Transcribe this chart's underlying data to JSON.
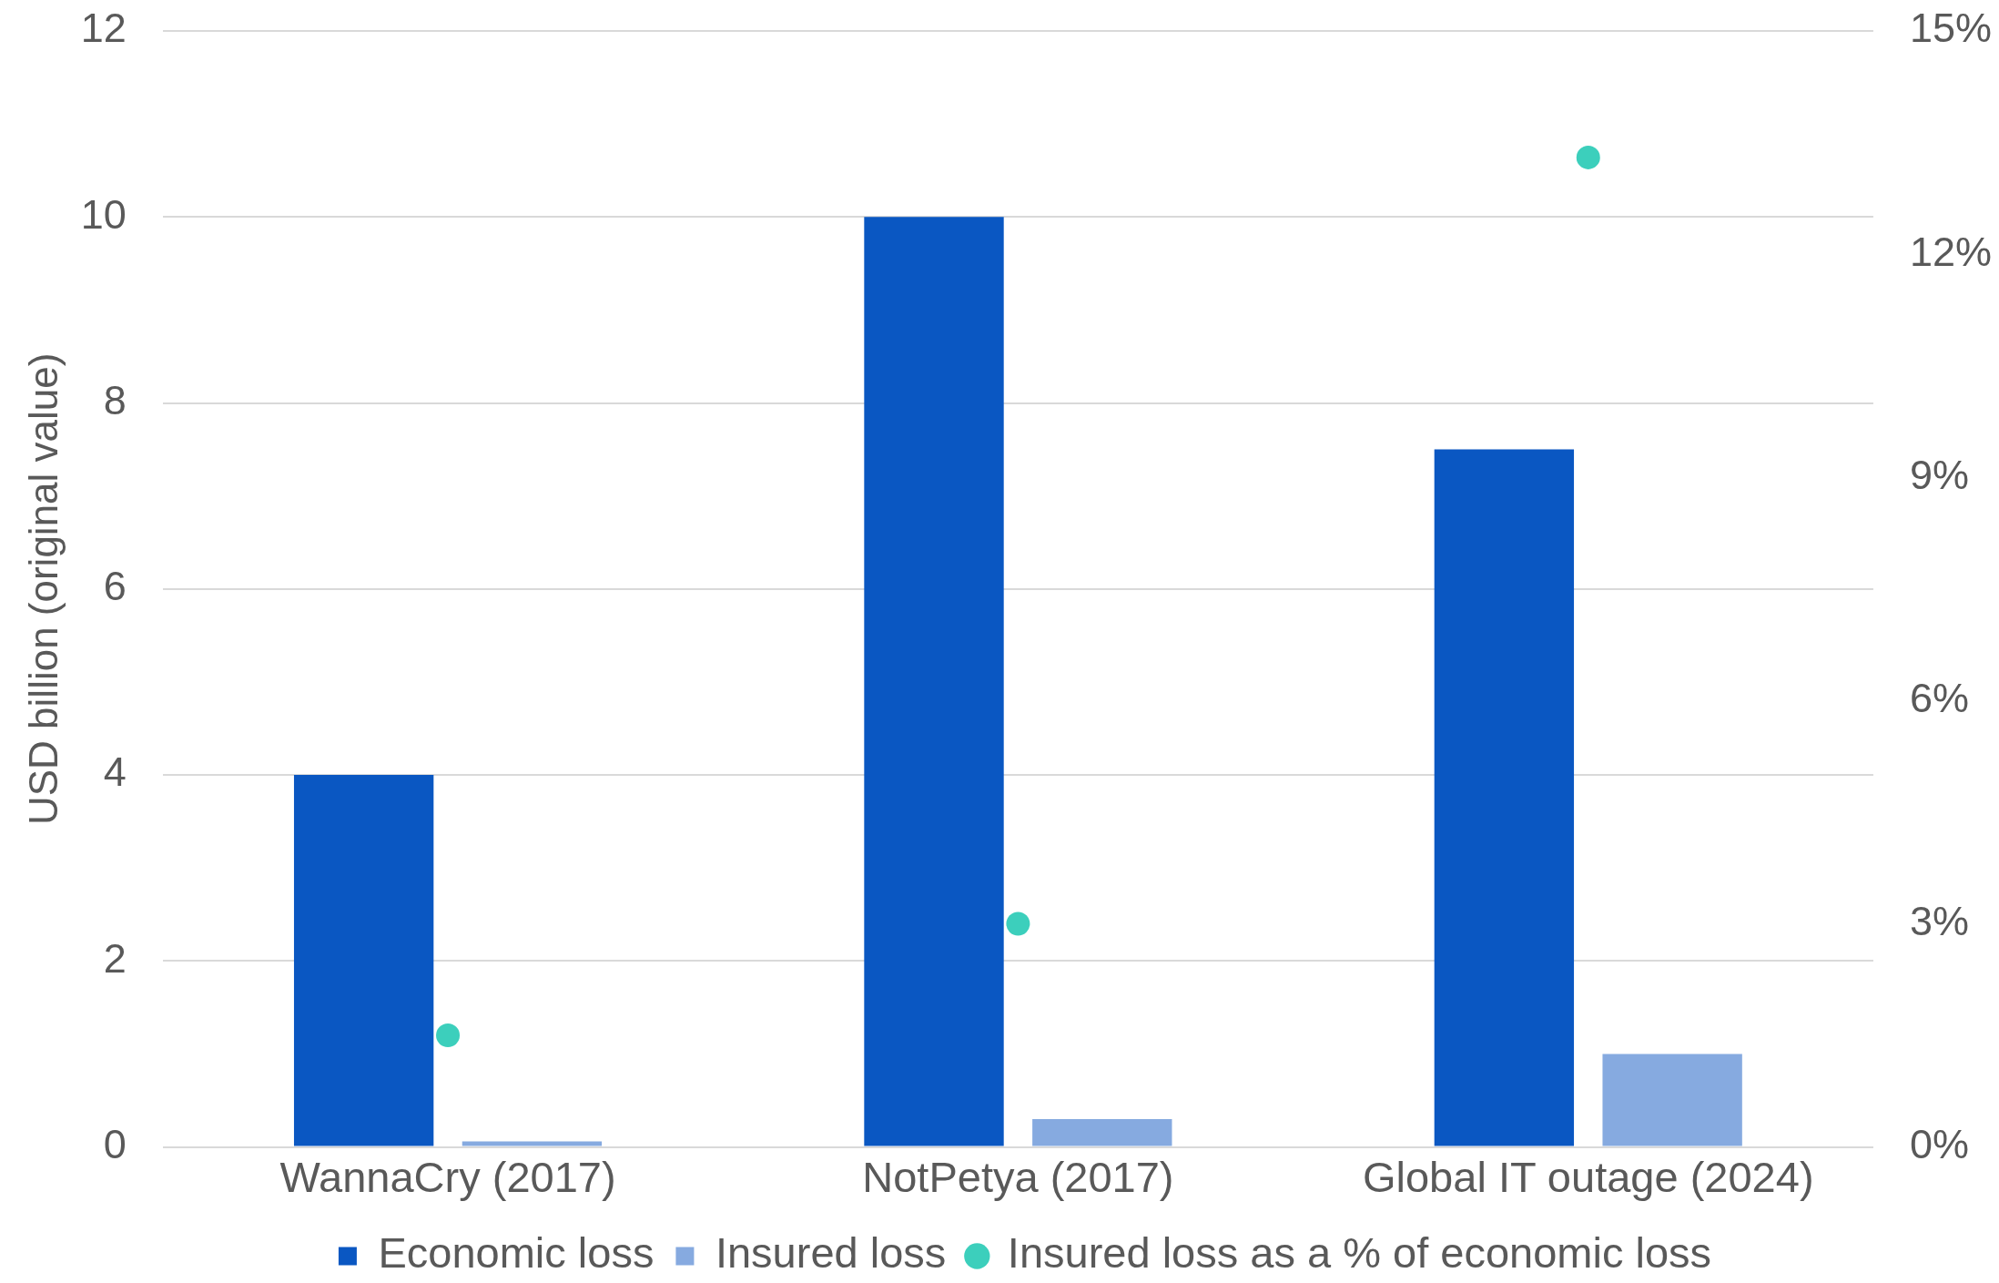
{
  "chart_data": {
    "type": "bar",
    "categories": [
      "WannaCry (2017)",
      "NotPetya (2017)",
      "Global IT outage (2024)"
    ],
    "series": [
      {
        "name": "Economic loss",
        "color": "#0a57c2",
        "values": [
          4,
          10,
          7.5
        ]
      },
      {
        "name": "Insured loss",
        "color": "#86aae0",
        "values": [
          0.06,
          0.3,
          1
        ]
      },
      {
        "name": "Insured loss as a % of economic loss",
        "type": "scatter",
        "axis": "y2",
        "color": "#3ccfbc",
        "values": [
          1.5,
          3,
          13.3
        ]
      }
    ],
    "ylabel": "USD billion (original value)",
    "ylim": [
      0,
      12
    ],
    "yticks": [
      0,
      2,
      4,
      6,
      8,
      10,
      12
    ],
    "y2lim": [
      0,
      15
    ],
    "y2ticks": [
      {
        "value": 0,
        "label": "0%"
      },
      {
        "value": 3,
        "label": "3%"
      },
      {
        "value": 6,
        "label": "6%"
      },
      {
        "value": 9,
        "label": "9%"
      },
      {
        "value": 12,
        "label": "12%"
      },
      {
        "value": 15,
        "label": "15%"
      }
    ],
    "grid": "y",
    "legend": "bottom",
    "marker": "circle"
  }
}
